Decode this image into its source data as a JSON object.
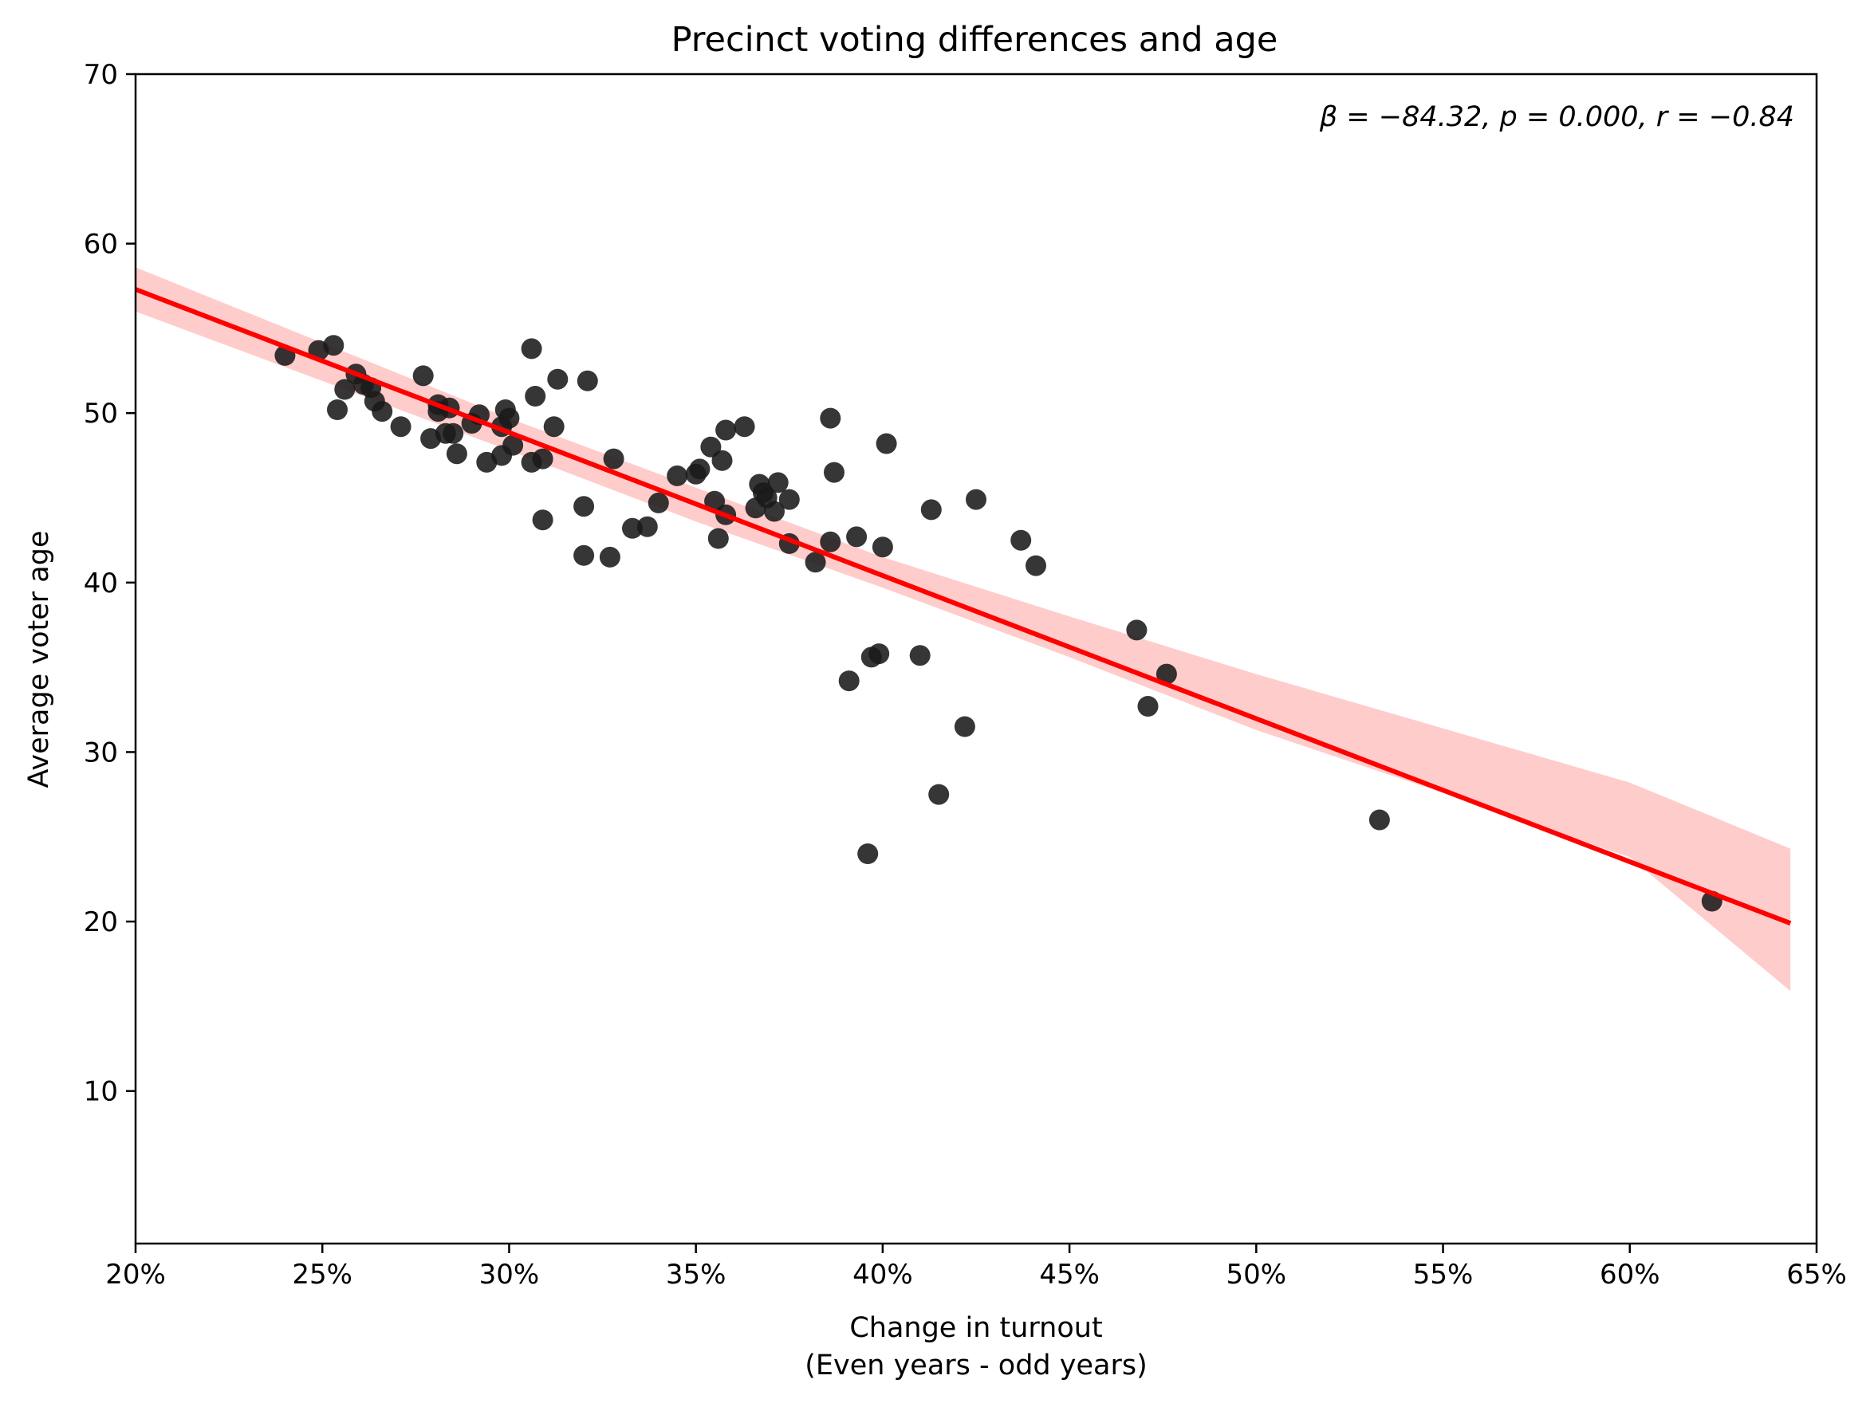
{
  "chart_data": {
    "type": "scatter",
    "title": "Precinct voting differences and age",
    "xlabel_line1": "Change in turnout",
    "xlabel_line2": "(Even years - odd years)",
    "ylabel": "Average voter age",
    "annotation": "β = −84.32, p = 0.000, r = −0.84",
    "xlim": [
      0.2,
      0.65
    ],
    "ylim": [
      1,
      70
    ],
    "x_ticks": [
      0.2,
      0.25,
      0.3,
      0.35,
      0.4,
      0.45,
      0.5,
      0.55,
      0.6,
      0.65
    ],
    "x_tick_labels": [
      "20%",
      "25%",
      "30%",
      "35%",
      "40%",
      "45%",
      "50%",
      "55%",
      "60%",
      "65%"
    ],
    "y_ticks": [
      10,
      20,
      30,
      40,
      50,
      60,
      70
    ],
    "y_tick_labels": [
      "10",
      "20",
      "30",
      "40",
      "50",
      "60",
      "70"
    ],
    "grid": false,
    "legend": "none",
    "colors": {
      "points": "#1a1a1a",
      "fit_line": "#ff0000",
      "ci_band": "#ffcccc"
    },
    "fit_line": {
      "x": [
        0.2,
        0.643
      ],
      "y": [
        57.3,
        19.9
      ]
    },
    "ci_band": {
      "x": [
        0.2,
        0.3,
        0.35,
        0.4,
        0.45,
        0.5,
        0.55,
        0.6,
        0.643
      ],
      "upper": [
        58.6,
        49.7,
        45.6,
        41.5,
        38.0,
        34.6,
        31.4,
        28.2,
        24.3
      ],
      "lower": [
        56.0,
        47.8,
        43.6,
        39.7,
        35.6,
        31.3,
        27.6,
        23.8,
        15.9
      ]
    },
    "points": [
      [
        0.24,
        53.4
      ],
      [
        0.249,
        53.7
      ],
      [
        0.253,
        54.0
      ],
      [
        0.254,
        50.2
      ],
      [
        0.256,
        51.4
      ],
      [
        0.259,
        52.3
      ],
      [
        0.261,
        51.7
      ],
      [
        0.263,
        51.5
      ],
      [
        0.264,
        50.7
      ],
      [
        0.266,
        50.1
      ],
      [
        0.271,
        49.2
      ],
      [
        0.277,
        52.2
      ],
      [
        0.279,
        48.5
      ],
      [
        0.281,
        50.5
      ],
      [
        0.281,
        50.1
      ],
      [
        0.283,
        48.8
      ],
      [
        0.284,
        50.3
      ],
      [
        0.285,
        48.8
      ],
      [
        0.286,
        47.6
      ],
      [
        0.29,
        49.4
      ],
      [
        0.292,
        49.9
      ],
      [
        0.294,
        47.1
      ],
      [
        0.298,
        49.2
      ],
      [
        0.298,
        47.5
      ],
      [
        0.299,
        50.2
      ],
      [
        0.3,
        49.7
      ],
      [
        0.301,
        48.1
      ],
      [
        0.306,
        53.8
      ],
      [
        0.307,
        51.0
      ],
      [
        0.306,
        47.1
      ],
      [
        0.309,
        47.3
      ],
      [
        0.309,
        43.7
      ],
      [
        0.312,
        49.2
      ],
      [
        0.313,
        52.0
      ],
      [
        0.32,
        44.5
      ],
      [
        0.32,
        41.6
      ],
      [
        0.321,
        51.9
      ],
      [
        0.327,
        41.5
      ],
      [
        0.328,
        47.3
      ],
      [
        0.333,
        43.2
      ],
      [
        0.337,
        43.3
      ],
      [
        0.34,
        44.7
      ],
      [
        0.345,
        46.3
      ],
      [
        0.35,
        46.4
      ],
      [
        0.351,
        46.7
      ],
      [
        0.354,
        48.0
      ],
      [
        0.355,
        44.8
      ],
      [
        0.356,
        42.6
      ],
      [
        0.357,
        47.2
      ],
      [
        0.358,
        44.0
      ],
      [
        0.358,
        49.0
      ],
      [
        0.363,
        49.2
      ],
      [
        0.366,
        44.4
      ],
      [
        0.367,
        45.8
      ],
      [
        0.368,
        45.3
      ],
      [
        0.369,
        45.0
      ],
      [
        0.371,
        44.2
      ],
      [
        0.372,
        45.9
      ],
      [
        0.375,
        44.9
      ],
      [
        0.375,
        42.3
      ],
      [
        0.382,
        41.2
      ],
      [
        0.386,
        42.4
      ],
      [
        0.386,
        49.7
      ],
      [
        0.387,
        46.5
      ],
      [
        0.391,
        34.2
      ],
      [
        0.393,
        42.7
      ],
      [
        0.396,
        24.0
      ],
      [
        0.397,
        35.6
      ],
      [
        0.399,
        35.8
      ],
      [
        0.4,
        42.1
      ],
      [
        0.401,
        48.2
      ],
      [
        0.41,
        35.7
      ],
      [
        0.413,
        44.3
      ],
      [
        0.415,
        27.5
      ],
      [
        0.422,
        31.5
      ],
      [
        0.425,
        44.9
      ],
      [
        0.437,
        42.5
      ],
      [
        0.441,
        41.0
      ],
      [
        0.468,
        37.2
      ],
      [
        0.471,
        32.7
      ],
      [
        0.476,
        34.6
      ],
      [
        0.533,
        26.0
      ],
      [
        0.622,
        21.2
      ]
    ]
  }
}
